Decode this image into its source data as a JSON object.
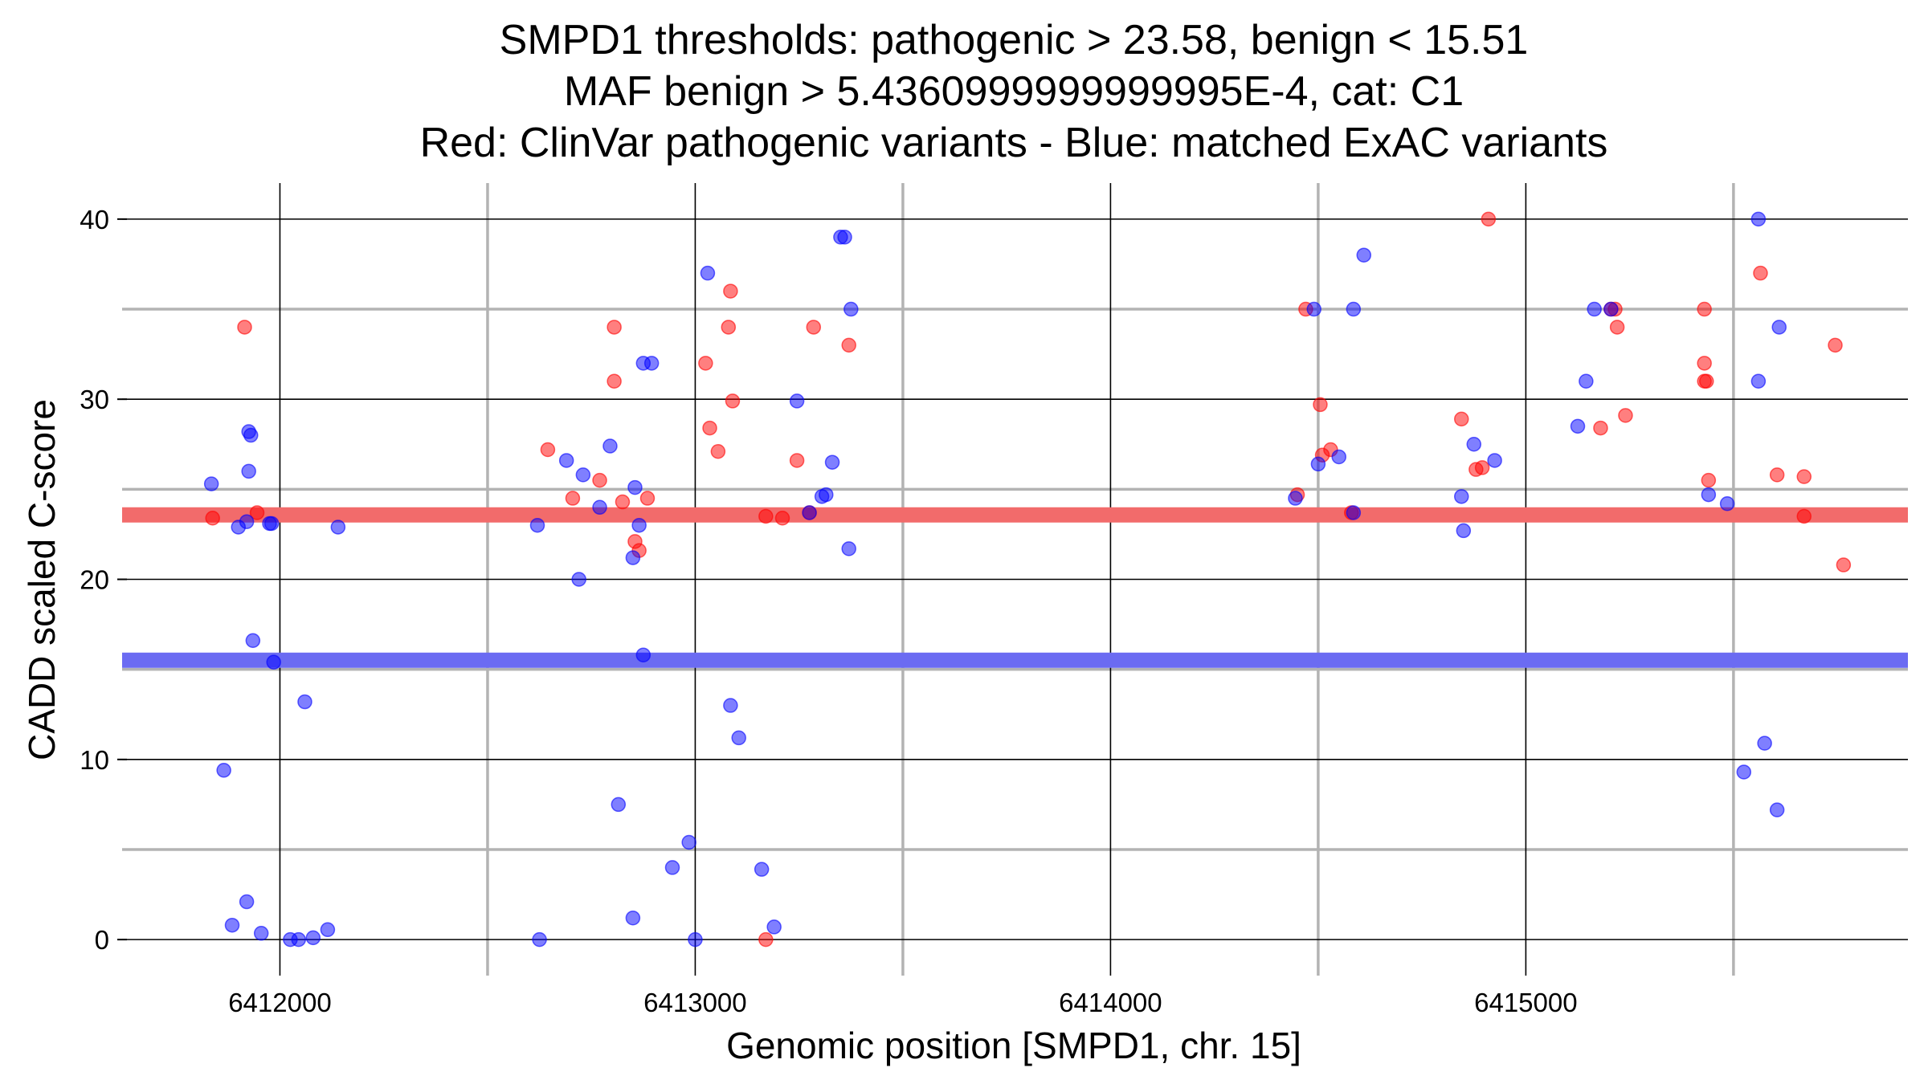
{
  "chart_data": {
    "type": "scatter",
    "title_lines": [
      "SMPD1 thresholds: pathogenic > 23.58, benign < 15.51",
      "MAF benign > 5.4360999999999995E-4, cat: C1",
      "Red: ClinVar pathogenic variants - Blue: matched ExAC variants"
    ],
    "xlabel": "Genomic position [SMPD1, chr. 15]",
    "ylabel": "CADD scaled C-score",
    "xlim": [
      6411620,
      6415920
    ],
    "ylim": [
      -2,
      42
    ],
    "x_major_ticks": [
      6412000,
      6413000,
      6414000,
      6415000
    ],
    "x_tick_labels": [
      "6412000",
      "6413000",
      "6414000",
      "6415000"
    ],
    "x_minor_gridlines": [
      6412500,
      6413500,
      6414500,
      6415500
    ],
    "y_major_ticks": [
      0,
      10,
      20,
      30,
      40
    ],
    "y_tick_labels": [
      "0",
      "10",
      "20",
      "30",
      "40"
    ],
    "y_minor_gridlines": [
      5,
      15,
      25,
      35
    ],
    "thresholds": [
      {
        "name": "pathogenic",
        "value": 23.58,
        "color": "#f26b6b"
      },
      {
        "name": "benign",
        "value": 15.51,
        "color": "#6b6bf2"
      }
    ],
    "series": [
      {
        "name": "ClinVar pathogenic variants",
        "color": "#ff0000",
        "points": [
          [
            6411915,
            34
          ],
          [
            6411838,
            23.4
          ],
          [
            6411945,
            23.7
          ],
          [
            6412645,
            27.2
          ],
          [
            6412705,
            24.5
          ],
          [
            6412770,
            25.5
          ],
          [
            6412805,
            34
          ],
          [
            6412805,
            31
          ],
          [
            6412825,
            24.3
          ],
          [
            6412855,
            22.1
          ],
          [
            6412865,
            21.6
          ],
          [
            6412885,
            24.5
          ],
          [
            6413025,
            32
          ],
          [
            6413035,
            28.4
          ],
          [
            6413055,
            27.1
          ],
          [
            6413080,
            34
          ],
          [
            6413085,
            36
          ],
          [
            6413090,
            29.9
          ],
          [
            6413170,
            23.5
          ],
          [
            6413210,
            23.4
          ],
          [
            6413170,
            0
          ],
          [
            6413245,
            26.6
          ],
          [
            6413275,
            23.7
          ],
          [
            6413285,
            34
          ],
          [
            6413370,
            33
          ],
          [
            6414450,
            24.7
          ],
          [
            6414470,
            35
          ],
          [
            6414505,
            29.7
          ],
          [
            6414510,
            26.9
          ],
          [
            6414530,
            27.2
          ],
          [
            6414580,
            23.7
          ],
          [
            6414845,
            28.9
          ],
          [
            6414880,
            26.1
          ],
          [
            6414895,
            26.2
          ],
          [
            6414910,
            40
          ],
          [
            6415180,
            28.4
          ],
          [
            6415205,
            35
          ],
          [
            6415215,
            35
          ],
          [
            6415220,
            34
          ],
          [
            6415240,
            29.1
          ],
          [
            6415430,
            35
          ],
          [
            6415430,
            32
          ],
          [
            6415430,
            31
          ],
          [
            6415435,
            31
          ],
          [
            6415440,
            25.5
          ],
          [
            6415565,
            37
          ],
          [
            6415605,
            25.8
          ],
          [
            6415670,
            25.7
          ],
          [
            6415670,
            23.5
          ],
          [
            6415745,
            33
          ],
          [
            6415765,
            20.8
          ]
        ]
      },
      {
        "name": "matched ExAC variants",
        "color": "#0000ff",
        "points": [
          [
            6411835,
            25.3
          ],
          [
            6411865,
            9.4
          ],
          [
            6411885,
            0.8
          ],
          [
            6411900,
            22.9
          ],
          [
            6411920,
            23.2
          ],
          [
            6411920,
            2.1
          ],
          [
            6411925,
            28.2
          ],
          [
            6411925,
            26
          ],
          [
            6411930,
            28
          ],
          [
            6411935,
            16.6
          ],
          [
            6411955,
            0.35
          ],
          [
            6411975,
            23.1
          ],
          [
            6411980,
            23.1
          ],
          [
            6411985,
            15.4
          ],
          [
            6412025,
            0
          ],
          [
            6412045,
            0
          ],
          [
            6412060,
            13.2
          ],
          [
            6412080,
            0.1
          ],
          [
            6412115,
            0.55
          ],
          [
            6412140,
            22.9
          ],
          [
            6412620,
            23
          ],
          [
            6412625,
            0
          ],
          [
            6412690,
            26.6
          ],
          [
            6412720,
            20
          ],
          [
            6412730,
            25.8
          ],
          [
            6412770,
            24
          ],
          [
            6412795,
            27.4
          ],
          [
            6412815,
            7.5
          ],
          [
            6412850,
            21.2
          ],
          [
            6412850,
            1.2
          ],
          [
            6412855,
            25.1
          ],
          [
            6412865,
            23
          ],
          [
            6412875,
            32
          ],
          [
            6412875,
            15.8
          ],
          [
            6412895,
            32
          ],
          [
            6412945,
            4
          ],
          [
            6412985,
            5.4
          ],
          [
            6413000,
            0
          ],
          [
            6413030,
            37
          ],
          [
            6413085,
            13
          ],
          [
            6413105,
            11.2
          ],
          [
            6413160,
            3.9
          ],
          [
            6413190,
            0.7
          ],
          [
            6413245,
            29.9
          ],
          [
            6413275,
            23.7
          ],
          [
            6413305,
            24.6
          ],
          [
            6413315,
            24.7
          ],
          [
            6413330,
            26.5
          ],
          [
            6413350,
            39
          ],
          [
            6413360,
            39
          ],
          [
            6413370,
            21.7
          ],
          [
            6413375,
            35
          ],
          [
            6414445,
            24.5
          ],
          [
            6414490,
            35
          ],
          [
            6414500,
            26.4
          ],
          [
            6414550,
            26.8
          ],
          [
            6414585,
            35
          ],
          [
            6414585,
            23.7
          ],
          [
            6414610,
            38
          ],
          [
            6414845,
            24.6
          ],
          [
            6414850,
            22.7
          ],
          [
            6414875,
            27.5
          ],
          [
            6414925,
            26.6
          ],
          [
            6415125,
            28.5
          ],
          [
            6415145,
            31
          ],
          [
            6415165,
            35
          ],
          [
            6415205,
            35
          ],
          [
            6415440,
            24.7
          ],
          [
            6415485,
            24.2
          ],
          [
            6415525,
            9.3
          ],
          [
            6415560,
            31
          ],
          [
            6415560,
            40
          ],
          [
            6415575,
            10.9
          ],
          [
            6415605,
            7.2
          ],
          [
            6415610,
            34
          ]
        ]
      }
    ]
  }
}
